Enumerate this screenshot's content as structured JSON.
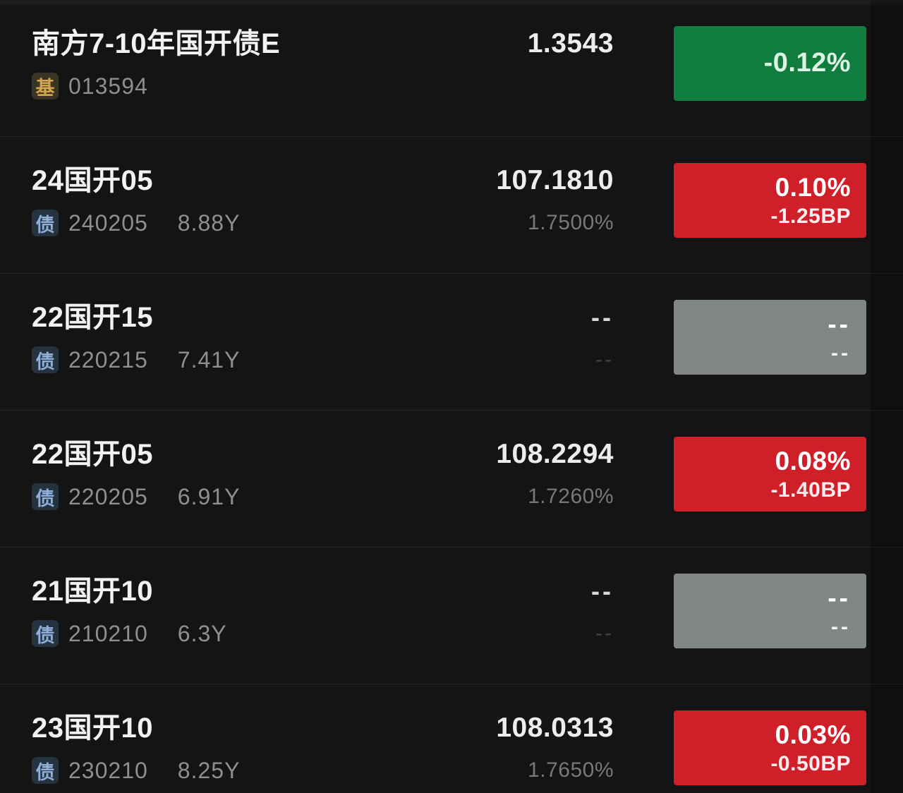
{
  "colors": {
    "background": "#141414",
    "badge_up_red": "#cf2029",
    "badge_down_green": "#107c3e",
    "badge_na_gray": "#828683",
    "tag_fund_gold": "#d2a550",
    "tag_bond_blue": "#8fb0d8"
  },
  "rows": [
    {
      "name": "南方7-10年国开债E",
      "tag": {
        "label": "基",
        "type": "fund"
      },
      "code": "013594",
      "duration": "",
      "price": "1.3543",
      "yield": "",
      "badge": {
        "type": "down",
        "line1": "-0.12%",
        "line2": ""
      }
    },
    {
      "name": "24国开05",
      "tag": {
        "label": "债",
        "type": "bond"
      },
      "code": "240205",
      "duration": "8.88Y",
      "price": "107.1810",
      "yield": "1.7500%",
      "badge": {
        "type": "up",
        "line1": "0.10%",
        "line2": "-1.25BP"
      }
    },
    {
      "name": "22国开15",
      "tag": {
        "label": "债",
        "type": "bond"
      },
      "code": "220215",
      "duration": "7.41Y",
      "price": "--",
      "yield": "--",
      "badge": {
        "type": "na",
        "line1": "--",
        "line2": "--"
      }
    },
    {
      "name": "22国开05",
      "tag": {
        "label": "债",
        "type": "bond"
      },
      "code": "220205",
      "duration": "6.91Y",
      "price": "108.2294",
      "yield": "1.7260%",
      "badge": {
        "type": "up",
        "line1": "0.08%",
        "line2": "-1.40BP"
      }
    },
    {
      "name": "21国开10",
      "tag": {
        "label": "债",
        "type": "bond"
      },
      "code": "210210",
      "duration": "6.3Y",
      "price": "--",
      "yield": "--",
      "badge": {
        "type": "na",
        "line1": "--",
        "line2": "--"
      }
    },
    {
      "name": "23国开10",
      "tag": {
        "label": "债",
        "type": "bond"
      },
      "code": "230210",
      "duration": "8.25Y",
      "price": "108.0313",
      "yield": "1.7650%",
      "badge": {
        "type": "up",
        "line1": "0.03%",
        "line2": "-0.50BP"
      }
    }
  ]
}
